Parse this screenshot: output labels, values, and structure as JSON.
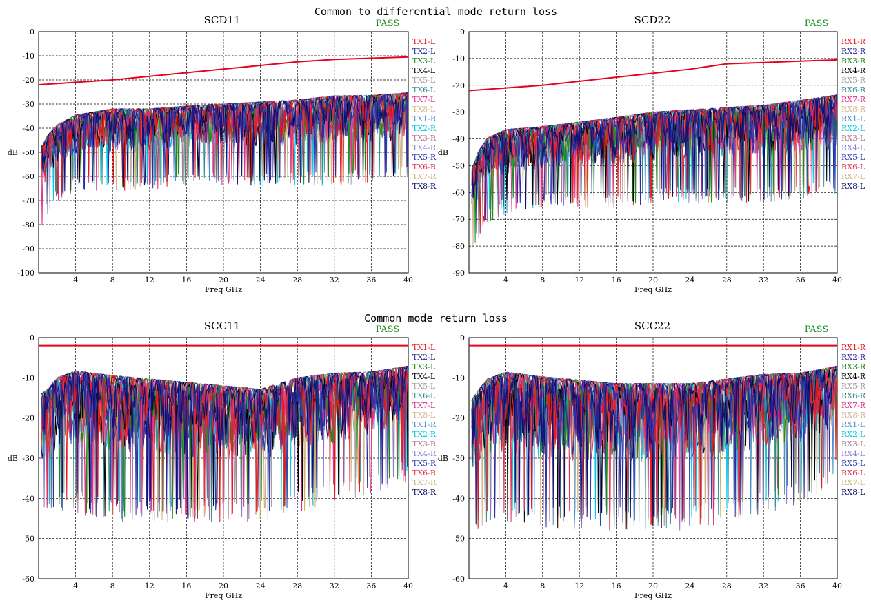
{
  "section_titles": [
    "Common to differential mode return loss",
    "Common mode return loss"
  ],
  "colors": {
    "limit": "#e8001c",
    "pass": "#228b22",
    "grid": "#000000",
    "palette": [
      "#e31a1c",
      "#2b2b9e",
      "#1b8a1b",
      "#000000",
      "#a0a0a0",
      "#2e8b8b",
      "#e0308a",
      "#d2b48c",
      "#4a90c8",
      "#00c8e0",
      "#b07890",
      "#8a7ad0",
      "#3040b0",
      "#e03050",
      "#c8b070",
      "#101070"
    ]
  },
  "chart_data": [
    {
      "type": "line",
      "title": "SCD11",
      "status": "PASS",
      "xlabel": "Freq GHz",
      "ylabel": "dB",
      "xlim": [
        0,
        40
      ],
      "ylim": [
        -100,
        0
      ],
      "xticks": [
        4,
        8,
        12,
        16,
        20,
        24,
        28,
        32,
        36,
        40
      ],
      "yticks": [
        0,
        -10,
        -20,
        -30,
        -40,
        -50,
        -60,
        -70,
        -80,
        -90,
        -100
      ],
      "grid": true,
      "legend_position": "right",
      "legend": [
        "TX1-L",
        "TX2-L",
        "TX3-L",
        "TX4-L",
        "TX5-L",
        "TX6-L",
        "TX7-L",
        "TX8-L",
        "TX1-R",
        "TX2-R",
        "TX3-R",
        "TX4-R",
        "TX5-R",
        "TX6-R",
        "TX7-R",
        "TX8-R"
      ],
      "limit_line": {
        "x": [
          0,
          8,
          16,
          24,
          28,
          32,
          36,
          40
        ],
        "y": [
          -22,
          -20,
          -17,
          -14,
          -12.5,
          -11.5,
          -11,
          -10.5
        ]
      },
      "trace_envelope": {
        "x": [
          0,
          1,
          2,
          4,
          8,
          12,
          16,
          20,
          24,
          28,
          32,
          36,
          40
        ],
        "upper": [
          -45,
          -38,
          -34,
          -30,
          -27,
          -27,
          -26,
          -25,
          -24,
          -23,
          -21,
          -21,
          -20
        ],
        "lower": [
          -78,
          -70,
          -65,
          -60,
          -60,
          -60,
          -58,
          -58,
          -58,
          -58,
          -58,
          -57,
          -55
        ]
      }
    },
    {
      "type": "line",
      "title": "SCD22",
      "status": "PASS",
      "xlabel": "Freq GHz",
      "ylabel": "dB",
      "xlim": [
        0,
        40
      ],
      "ylim": [
        -90,
        0
      ],
      "xticks": [
        4,
        8,
        12,
        16,
        20,
        24,
        28,
        32,
        36,
        40
      ],
      "yticks": [
        0,
        -10,
        -20,
        -30,
        -40,
        -50,
        -60,
        -70,
        -80,
        -90
      ],
      "grid": true,
      "legend_position": "right",
      "legend": [
        "RX1-R",
        "RX2-R",
        "RX3-R",
        "RX4-R",
        "RX5-R",
        "RX6-R",
        "RX7-R",
        "RX8-R",
        "RX1-L",
        "RX2-L",
        "RX3-L",
        "RX4-L",
        "RX5-L",
        "RX6-L",
        "RX7-L",
        "RX8-L"
      ],
      "limit_line": {
        "x": [
          0,
          8,
          16,
          24,
          28,
          32,
          36,
          40
        ],
        "y": [
          -22,
          -20,
          -17,
          -14,
          -12,
          -11.5,
          -11,
          -10.5
        ]
      },
      "trace_envelope": {
        "x": [
          0,
          1,
          2,
          4,
          8,
          12,
          16,
          20,
          24,
          28,
          32,
          36,
          40
        ],
        "upper": [
          -50,
          -40,
          -35,
          -32,
          -31,
          -29,
          -27,
          -25,
          -24,
          -23,
          -22,
          -20,
          -18
        ],
        "lower": [
          -78,
          -72,
          -66,
          -62,
          -60,
          -60,
          -60,
          -58,
          -58,
          -58,
          -58,
          -57,
          -55
        ]
      }
    },
    {
      "type": "line",
      "title": "SCC11",
      "status": "PASS",
      "xlabel": "Freq GHz",
      "ylabel": "dB",
      "xlim": [
        0,
        40
      ],
      "ylim": [
        -60,
        0
      ],
      "xticks": [
        4,
        8,
        12,
        16,
        20,
        24,
        28,
        32,
        36,
        40
      ],
      "yticks": [
        0,
        -10,
        -20,
        -30,
        -40,
        -50,
        -60
      ],
      "grid": true,
      "legend_position": "right",
      "legend": [
        "TX1-L",
        "TX2-L",
        "TX3-L",
        "TX4-L",
        "TX5-L",
        "TX6-L",
        "TX7-L",
        "TX8-L",
        "TX1-R",
        "TX2-R",
        "TX3-R",
        "TX4-R",
        "TX5-R",
        "TX6-R",
        "TX7-R",
        "TX8-R"
      ],
      "limit_line": {
        "x": [
          0,
          40
        ],
        "y": [
          -2,
          -2
        ]
      },
      "trace_envelope": {
        "x": [
          0,
          1,
          2,
          4,
          8,
          12,
          16,
          20,
          24,
          28,
          32,
          36,
          40
        ],
        "upper": [
          -10,
          -8,
          -5,
          -3,
          -4,
          -5,
          -6,
          -7,
          -8,
          -5,
          -4,
          -4,
          -3
        ],
        "lower": [
          -40,
          -40,
          -38,
          -38,
          -40,
          -40,
          -40,
          -40,
          -40,
          -38,
          -36,
          -34,
          -30
        ]
      }
    },
    {
      "type": "line",
      "title": "SCC22",
      "status": "PASS",
      "xlabel": "Freq GHz",
      "ylabel": "dB",
      "xlim": [
        0,
        40
      ],
      "ylim": [
        -60,
        0
      ],
      "xticks": [
        4,
        8,
        12,
        16,
        20,
        24,
        28,
        32,
        36,
        40
      ],
      "yticks": [
        0,
        -10,
        -20,
        -30,
        -40,
        -50,
        -60
      ],
      "grid": true,
      "legend_position": "right",
      "legend": [
        "RX1-R",
        "RX2-R",
        "RX3-R",
        "RX4-R",
        "RX5-R",
        "RX6-R",
        "RX7-R",
        "RX8-R",
        "RX1-L",
        "RX2-L",
        "RX3-L",
        "RX4-L",
        "RX5-L",
        "RX6-L",
        "RX7-L",
        "RX8-L"
      ],
      "limit_line": {
        "x": [
          0,
          40
        ],
        "y": [
          -2,
          -2
        ]
      },
      "trace_envelope": {
        "x": [
          0,
          1,
          2,
          4,
          8,
          12,
          16,
          20,
          24,
          28,
          32,
          36,
          40
        ],
        "upper": [
          -12,
          -8,
          -5,
          -3,
          -4,
          -5,
          -6,
          -6,
          -6,
          -5,
          -4,
          -4,
          -3
        ],
        "lower": [
          -42,
          -42,
          -40,
          -40,
          -42,
          -42,
          -42,
          -42,
          -42,
          -40,
          -38,
          -36,
          -30
        ]
      }
    }
  ]
}
